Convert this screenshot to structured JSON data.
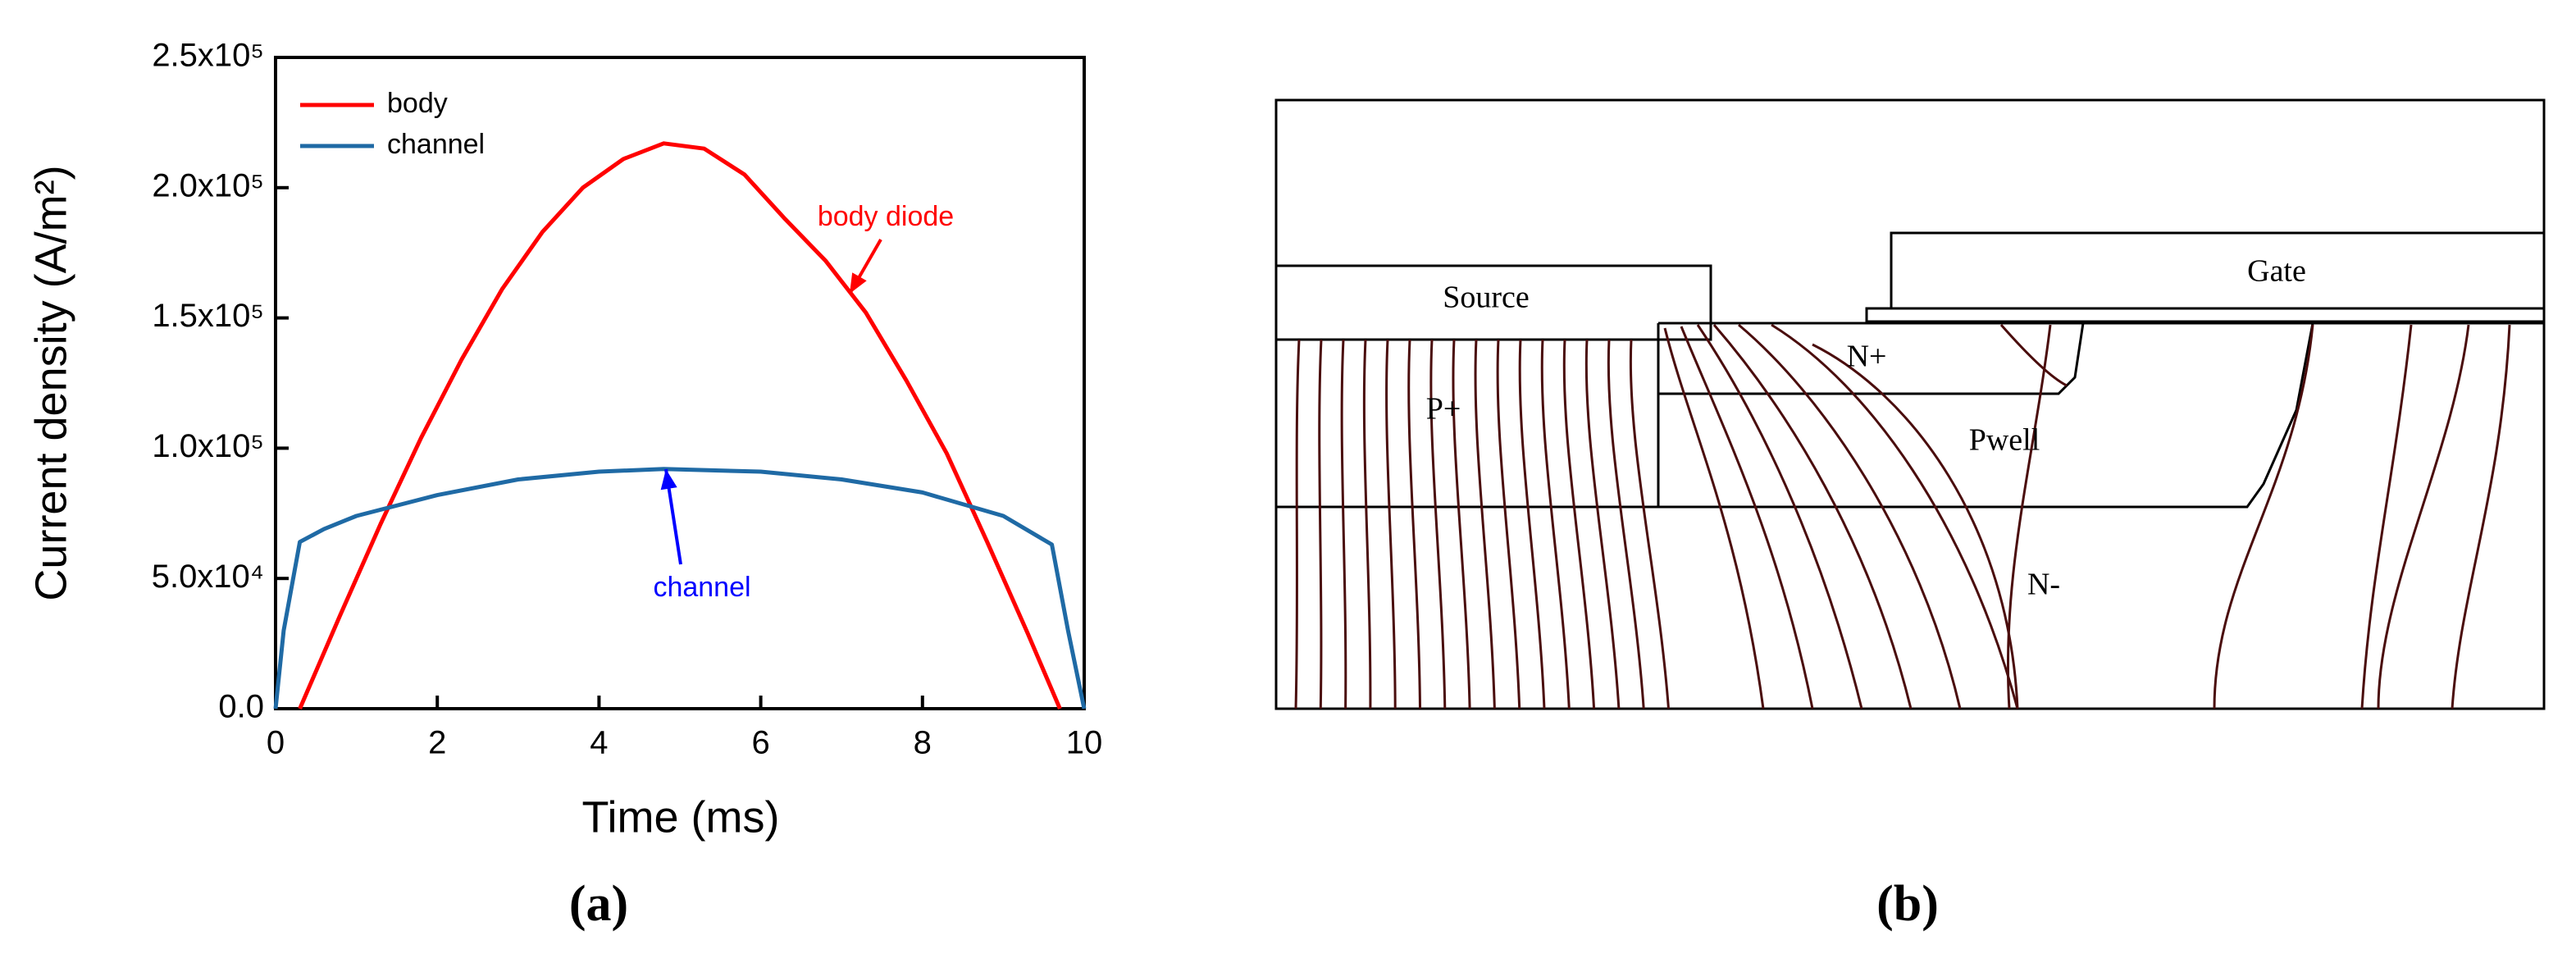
{
  "chart_data": {
    "type": "line",
    "xlabel": "Time (ms)",
    "ylabel": "Current density (A/m²)",
    "xlim": [
      0,
      10
    ],
    "ylim": [
      0,
      250000
    ],
    "xticks": [
      0,
      2,
      4,
      6,
      8,
      10
    ],
    "yticks": [
      {
        "value": 0,
        "label": "0.0"
      },
      {
        "value": 50000,
        "label": "5.0x10⁴"
      },
      {
        "value": 100000,
        "label": "1.0x10⁵"
      },
      {
        "value": 150000,
        "label": "1.5x10⁵"
      },
      {
        "value": 200000,
        "label": "2.0x10⁵"
      },
      {
        "value": 250000,
        "label": "2.5x10⁵"
      }
    ],
    "legend": "upper left",
    "series": [
      {
        "name": "body",
        "color": "#ff0000",
        "x": [
          0.3,
          0.8,
          1.3,
          1.8,
          2.3,
          2.8,
          3.3,
          3.8,
          4.3,
          4.8,
          5.3,
          5.8,
          6.3,
          6.8,
          7.3,
          7.8,
          8.3,
          8.8,
          9.3,
          9.7
        ],
        "values": [
          0,
          36000,
          71000,
          104000,
          134000,
          161000,
          183000,
          200000,
          211000,
          217000,
          215000,
          205000,
          188000,
          172000,
          152000,
          126000,
          98000,
          64000,
          29000,
          0
        ]
      },
      {
        "name": "channel",
        "color": "#1f6aa5",
        "x": [
          0,
          0.1,
          0.3,
          0.6,
          1,
          2,
          3,
          4,
          4.8,
          6,
          7,
          8,
          9,
          9.6,
          9.8,
          10
        ],
        "values": [
          0,
          30000,
          64000,
          69000,
          74000,
          82000,
          88000,
          91000,
          92000,
          91000,
          88000,
          83000,
          74000,
          63000,
          30000,
          0
        ]
      }
    ],
    "annotations": [
      {
        "text": "body diode",
        "color": "#ff0000"
      },
      {
        "text": "channel",
        "color": "#0000ff"
      }
    ]
  },
  "panel_labels": [
    "(a)",
    "(b)"
  ],
  "diagram": {
    "labels": {
      "source": "Source",
      "gate": "Gate",
      "n_plus": "N+",
      "p_plus": "P+",
      "pwell": "Pwell",
      "n_minus": "N-"
    }
  }
}
